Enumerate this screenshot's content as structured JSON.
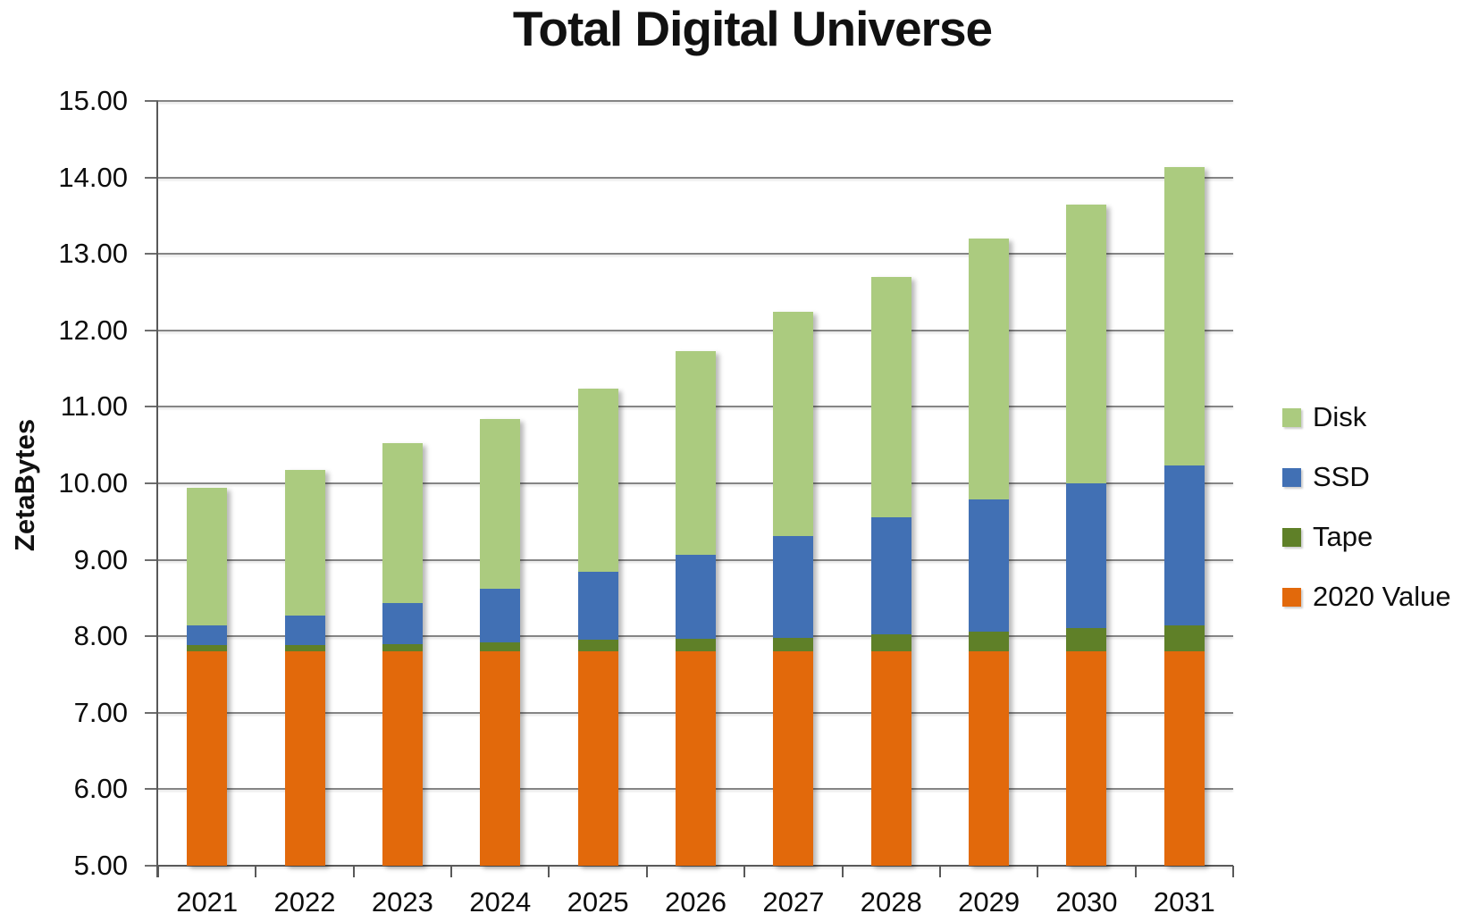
{
  "chart_data": {
    "type": "bar",
    "subtype": "stacked-column",
    "title": "Total Digital Universe",
    "ylabel": "ZetaBytes",
    "xlabel": "",
    "ylim": [
      5,
      15
    ],
    "ytick_step": 1,
    "ytick_labels": [
      "15.00",
      "14.00",
      "13.00",
      "12.00",
      "11.00",
      "10.00",
      "9.00",
      "8.00",
      "7.00",
      "6.00",
      "5.00"
    ],
    "grid": "horizontal",
    "legend_position": "right",
    "categories": [
      "2021",
      "2022",
      "2023",
      "2024",
      "2025",
      "2026",
      "2027",
      "2028",
      "2029",
      "2030",
      "2031"
    ],
    "series": [
      {
        "name": "2020 Value",
        "color": "#E2690B",
        "values": [
          7.8,
          7.8,
          7.8,
          7.8,
          7.8,
          7.8,
          7.8,
          7.8,
          7.8,
          7.8,
          7.8
        ]
      },
      {
        "name": "Tape",
        "color": "#5F8028",
        "values": [
          0.08,
          0.09,
          0.1,
          0.12,
          0.15,
          0.17,
          0.18,
          0.22,
          0.26,
          0.31,
          0.34
        ]
      },
      {
        "name": "SSD",
        "color": "#4170B4",
        "values": [
          0.26,
          0.38,
          0.54,
          0.7,
          0.89,
          1.1,
          1.33,
          1.54,
          1.73,
          1.89,
          2.09
        ]
      },
      {
        "name": "Disk",
        "color": "#ABCB7F",
        "values": [
          1.8,
          1.91,
          2.09,
          2.22,
          2.4,
          2.66,
          2.93,
          3.14,
          3.41,
          3.65,
          3.91
        ]
      }
    ],
    "totals": [
      9.94,
      10.18,
      10.53,
      10.84,
      11.24,
      11.73,
      12.24,
      12.7,
      13.2,
      13.65,
      14.14
    ],
    "legend": [
      {
        "label": "Disk",
        "color": "#ABCB7F"
      },
      {
        "label": "SSD",
        "color": "#4170B4"
      },
      {
        "label": "Tape",
        "color": "#5F8028"
      },
      {
        "label": "2020 Value",
        "color": "#E2690B"
      }
    ]
  }
}
